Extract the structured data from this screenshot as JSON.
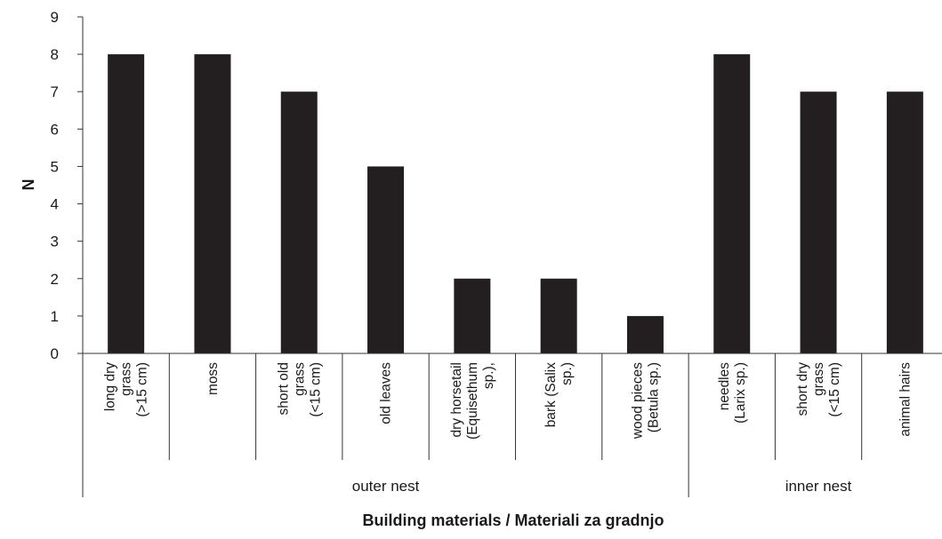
{
  "chart_data": {
    "type": "bar",
    "categories": [
      [
        "long dry",
        "grass",
        "(>15 cm)"
      ],
      [
        "moss"
      ],
      [
        "short old",
        "grass",
        "(<15 cm)"
      ],
      [
        "old leaves"
      ],
      [
        "dry horsetail",
        "(Equisethum",
        "sp.),"
      ],
      [
        "bark (Salix",
        "sp.)"
      ],
      [
        "wood pieces",
        "(Betula sp.)"
      ],
      [
        "needles",
        "(Larix sp.)"
      ],
      [
        "short dry",
        "grass",
        "(<15 cm)"
      ],
      [
        "animal hairs"
      ]
    ],
    "values": [
      8,
      8,
      7,
      5,
      2,
      2,
      1,
      8,
      7,
      7
    ],
    "groups": [
      {
        "label": "outer nest",
        "count": 7
      },
      {
        "label": "inner nest",
        "count": 3
      }
    ],
    "xlabel": "Building materials / Materiali za gradnjo",
    "ylabel": "N",
    "ylim": [
      0,
      9
    ],
    "yticks": [
      "0",
      "1",
      "2",
      "3",
      "4",
      "5",
      "6",
      "7",
      "8",
      "9"
    ],
    "grid": false,
    "legend": "none",
    "colors": {
      "bar": "#231f20",
      "axis": "#333333"
    }
  }
}
